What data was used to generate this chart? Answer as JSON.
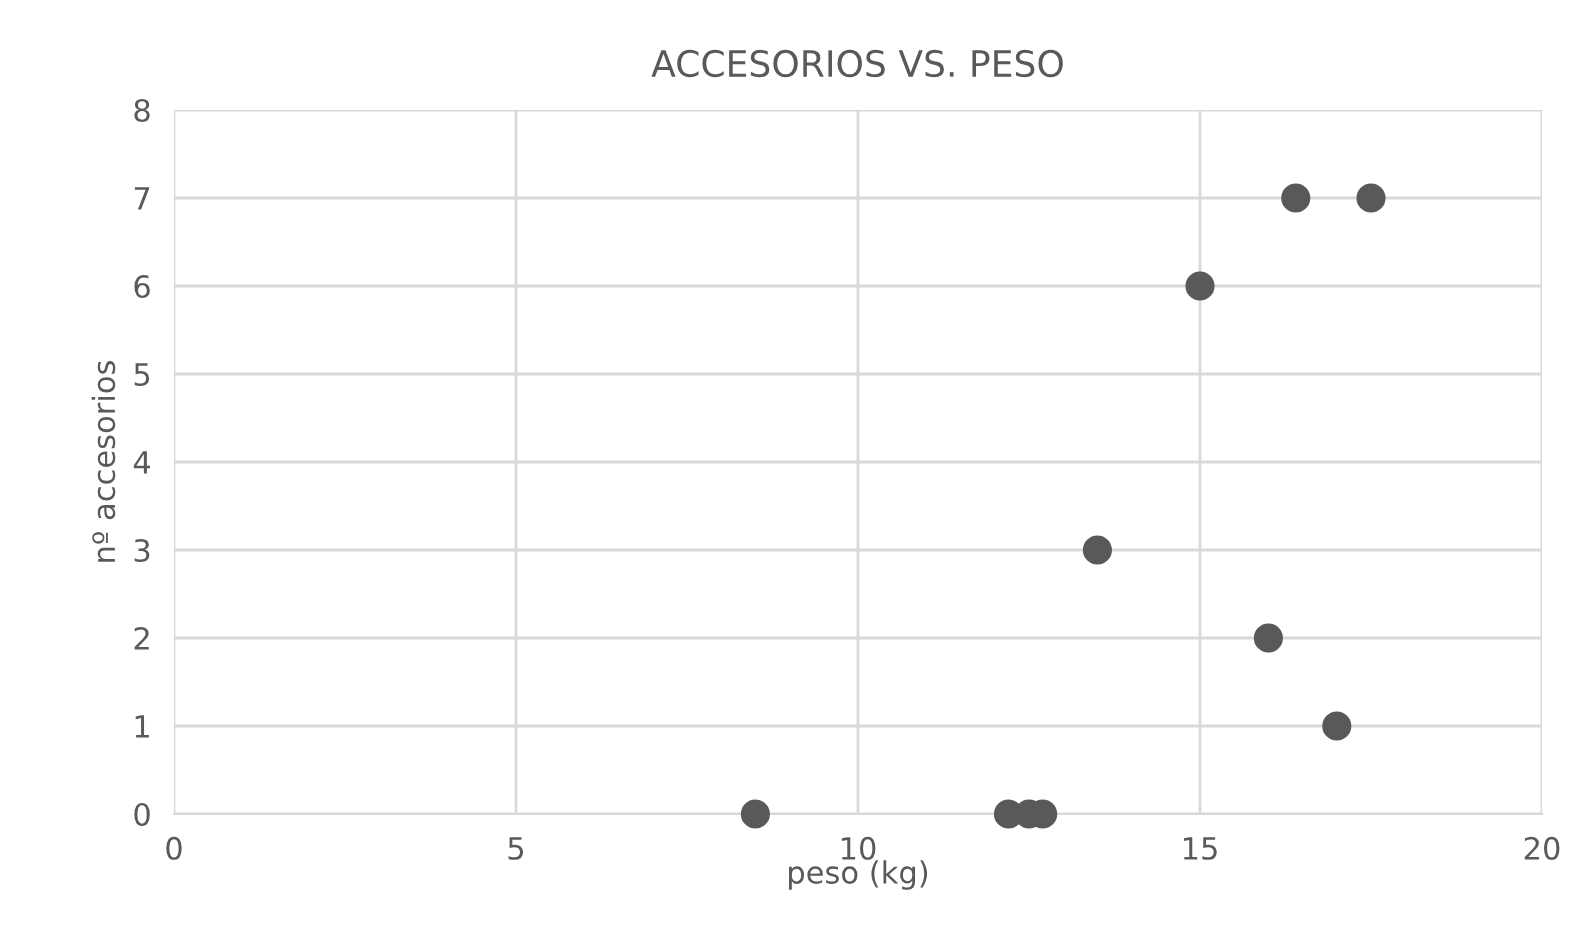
{
  "chart_data": {
    "type": "scatter",
    "title": "ACCESORIOS VS. PESO",
    "xlabel": "peso (kg)",
    "ylabel": "nº accesorios",
    "x": [
      8.5,
      12.2,
      12.5,
      12.7,
      13.5,
      15,
      16,
      16.4,
      17,
      17.5
    ],
    "series": [
      {
        "color": "#595959",
        "values": [
          0,
          0,
          0,
          0,
          3,
          6,
          2,
          7,
          1,
          7
        ]
      }
    ],
    "xlim": [
      0,
      20
    ],
    "xticks": [
      0,
      5,
      10,
      15,
      20
    ],
    "ylim": [
      0,
      8
    ],
    "yticks": [
      0,
      1,
      2,
      3,
      4,
      5,
      6,
      7,
      8
    ],
    "grid": true,
    "marker": "circle"
  }
}
